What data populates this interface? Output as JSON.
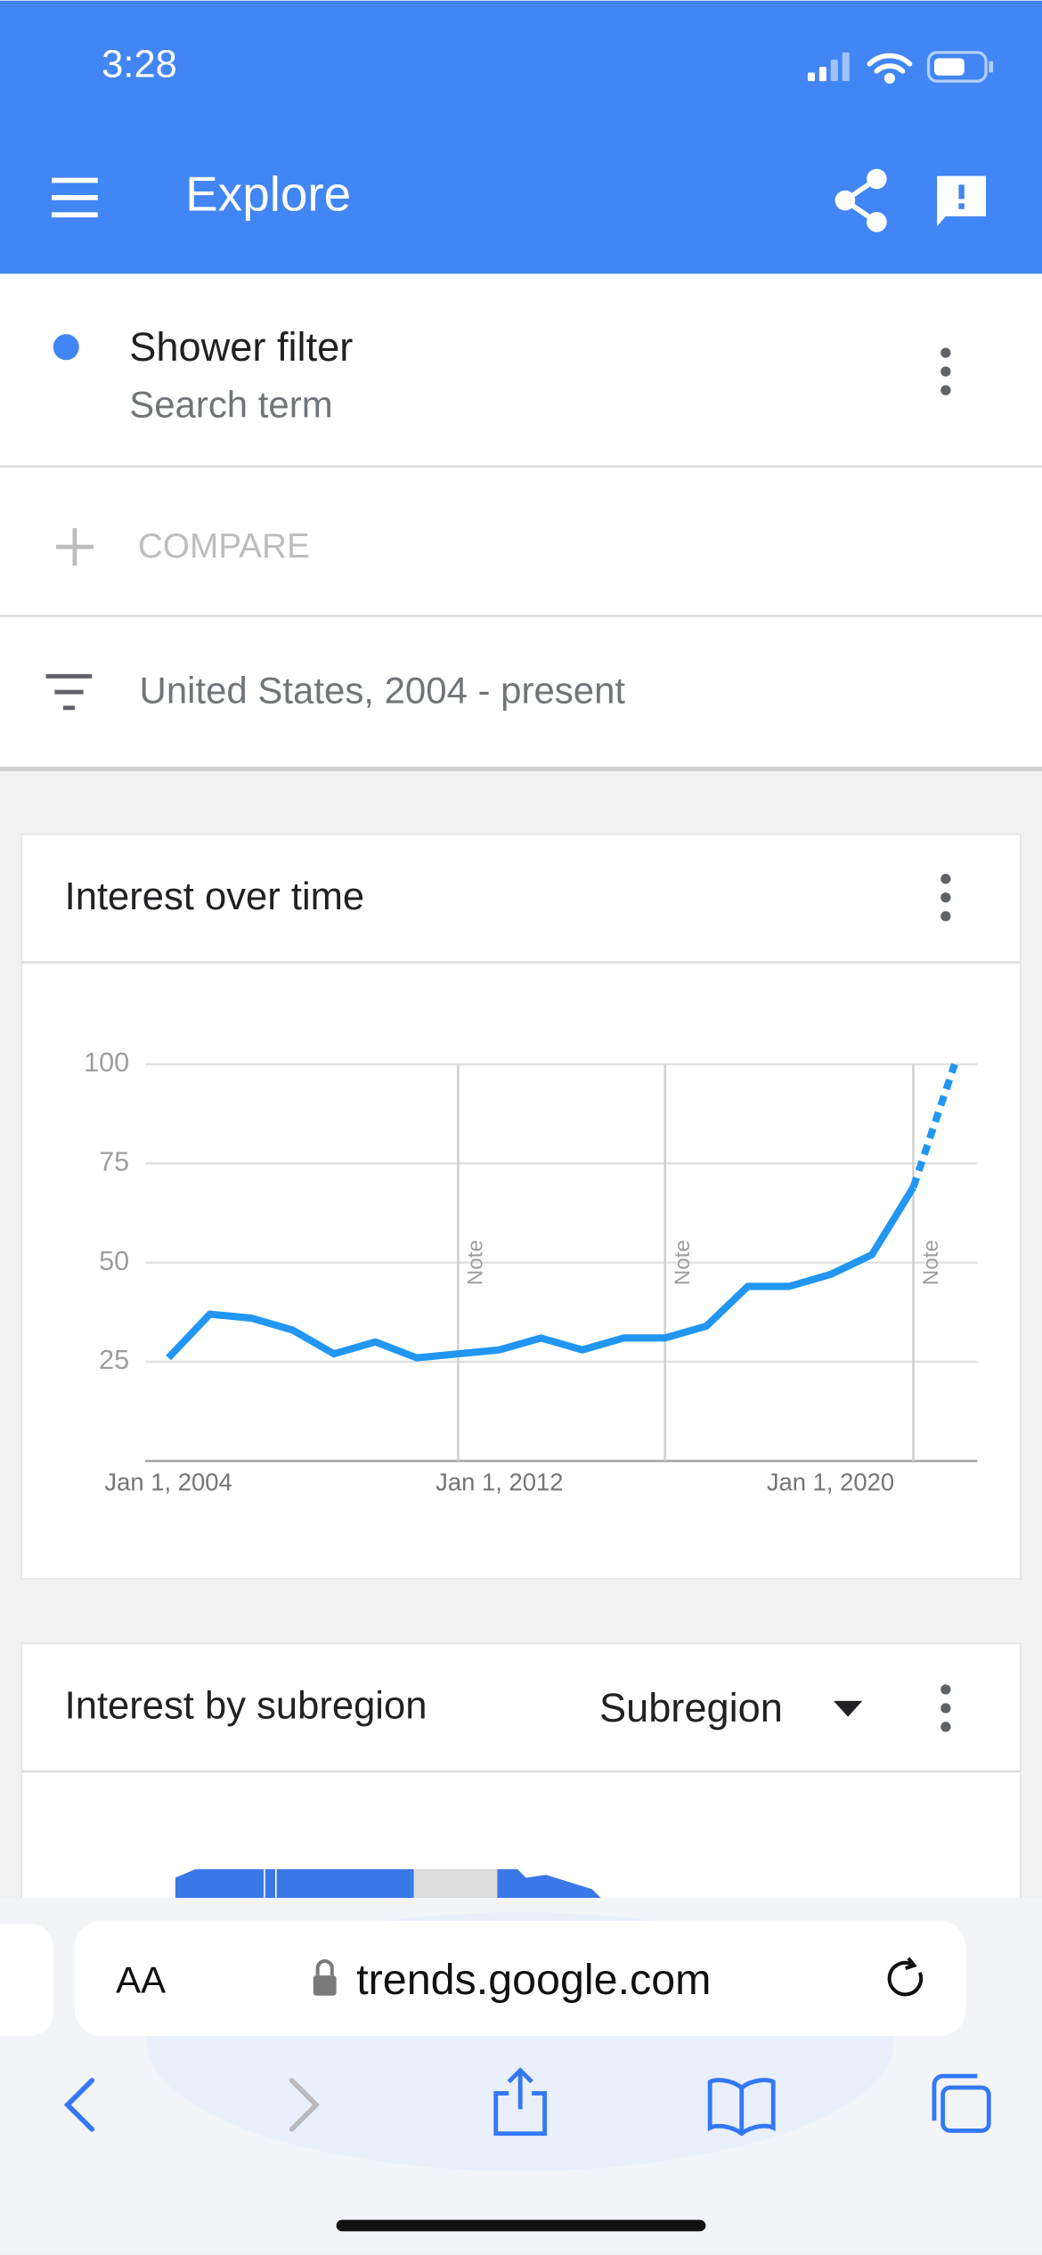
{
  "status_bar": {
    "time": "3:28"
  },
  "app_bar": {
    "title": "Explore"
  },
  "search_term": {
    "term": "Shower filter",
    "kind": "Search term"
  },
  "compare": {
    "label": "COMPARE"
  },
  "filter": {
    "label": "United States, 2004 - present"
  },
  "interest_over_time": {
    "title": "Interest over time"
  },
  "chart_data": {
    "type": "line",
    "x": [
      "2004-01-01",
      "2005-01-01",
      "2006-01-01",
      "2007-01-01",
      "2008-01-01",
      "2009-01-01",
      "2010-01-01",
      "2011-01-01",
      "2012-01-01",
      "2013-01-01",
      "2014-01-01",
      "2015-01-01",
      "2016-01-01",
      "2017-01-01",
      "2018-01-01",
      "2019-01-01",
      "2020-01-01",
      "2021-01-01",
      "2022-01-01",
      "2023-01-01"
    ],
    "series": [
      {
        "name": "Shower filter",
        "color": "#2196f3",
        "values": [
          26,
          37,
          36,
          33,
          27,
          30,
          26,
          27,
          28,
          31,
          28,
          31,
          31,
          34,
          44,
          44,
          47,
          52,
          69,
          100
        ]
      }
    ],
    "dashed_last_segment": true,
    "xlim": [
      "2003-06-10",
      "2023-07-20"
    ],
    "xticks": [
      {
        "value": "2004-01-01",
        "label": "Jan 1, 2004"
      },
      {
        "value": "2012-01-01",
        "label": "Jan 1, 2012"
      },
      {
        "value": "2020-01-01",
        "label": "Jan 1, 2020"
      }
    ],
    "ylim": [
      0,
      100
    ],
    "yticks": [
      25,
      50,
      75,
      100
    ],
    "grid": true,
    "annotations": [
      {
        "x": "2011-01-01",
        "label": "Note"
      },
      {
        "x": "2016-01-01",
        "label": "Note"
      },
      {
        "x": "2022-01-01",
        "label": "Note"
      }
    ]
  },
  "interest_by_subregion": {
    "title": "Interest by subregion",
    "dropdown": "Subregion"
  },
  "browser": {
    "text_size": "AA",
    "url": "trends.google.com"
  }
}
